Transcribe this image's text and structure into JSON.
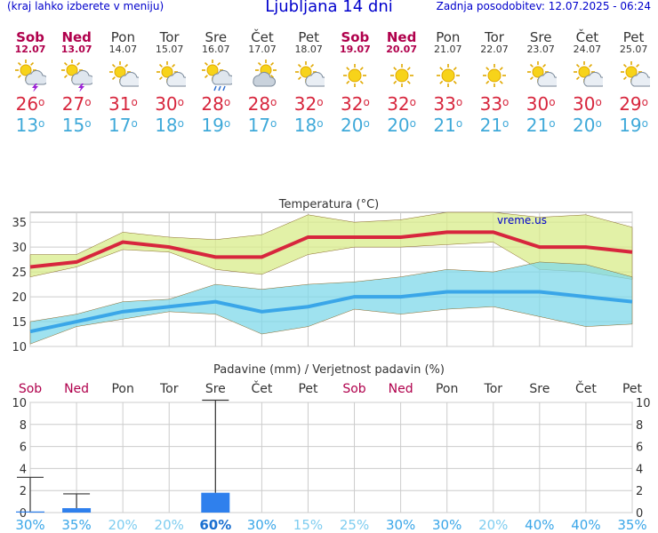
{
  "header": {
    "left_note": "(kraj lahko izberete v meniju)",
    "title": "Ljubljana 14 dni",
    "updated": "Zadnja posodobitev: 12.07.2025 - 06:24"
  },
  "colors": {
    "weekend": "#b0004c",
    "max_temp": "#d7263d",
    "min_temp": "#3fa9d9",
    "rain_bar": "#2f80ed"
  },
  "days": [
    {
      "name": "Sob",
      "date": "12.07",
      "weekend": true,
      "icon": "sun-cloud-lightning-icon",
      "tmax": "26",
      "tmin": "13",
      "precip_prob": "30%"
    },
    {
      "name": "Ned",
      "date": "13.07",
      "weekend": true,
      "icon": "sun-cloud-lightning-icon",
      "tmax": "27",
      "tmin": "15",
      "precip_prob": "35%"
    },
    {
      "name": "Pon",
      "date": "14.07",
      "weekend": false,
      "icon": "sun-cloud-icon",
      "tmax": "31",
      "tmin": "17",
      "precip_prob": "20%"
    },
    {
      "name": "Tor",
      "date": "15.07",
      "weekend": false,
      "icon": "sun-cloud-icon",
      "tmax": "30",
      "tmin": "18",
      "precip_prob": "20%"
    },
    {
      "name": "Sre",
      "date": "16.07",
      "weekend": false,
      "icon": "sun-cloud-rain-icon",
      "tmax": "28",
      "tmin": "19",
      "precip_prob": "60%"
    },
    {
      "name": "Čet",
      "date": "17.07",
      "weekend": false,
      "icon": "cloud-sun-icon",
      "tmax": "28",
      "tmin": "17",
      "precip_prob": "30%"
    },
    {
      "name": "Pet",
      "date": "18.07",
      "weekend": false,
      "icon": "sun-cloud-icon",
      "tmax": "32",
      "tmin": "18",
      "precip_prob": "15%"
    },
    {
      "name": "Sob",
      "date": "19.07",
      "weekend": true,
      "icon": "sun-icon",
      "tmax": "32",
      "tmin": "20",
      "precip_prob": "25%"
    },
    {
      "name": "Ned",
      "date": "20.07",
      "weekend": true,
      "icon": "sun-icon",
      "tmax": "32",
      "tmin": "20",
      "precip_prob": "30%"
    },
    {
      "name": "Pon",
      "date": "21.07",
      "weekend": false,
      "icon": "sun-icon",
      "tmax": "33",
      "tmin": "21",
      "precip_prob": "30%"
    },
    {
      "name": "Tor",
      "date": "22.07",
      "weekend": false,
      "icon": "sun-icon",
      "tmax": "33",
      "tmin": "21",
      "precip_prob": "20%"
    },
    {
      "name": "Sre",
      "date": "23.07",
      "weekend": false,
      "icon": "sun-cloud-icon",
      "tmax": "30",
      "tmin": "21",
      "precip_prob": "40%"
    },
    {
      "name": "Čet",
      "date": "24.07",
      "weekend": false,
      "icon": "sun-cloud-icon",
      "tmax": "30",
      "tmin": "20",
      "precip_prob": "40%"
    },
    {
      "name": "Pet",
      "date": "25.07",
      "weekend": false,
      "icon": "sun-cloud-icon",
      "tmax": "29",
      "tmin": "19",
      "precip_prob": "35%"
    }
  ],
  "chart_data": [
    {
      "type": "line",
      "title": "Temperatura (°C)",
      "watermark": "vreme.us",
      "ylim": [
        10,
        37
      ],
      "yticks": [
        10,
        15,
        20,
        25,
        30,
        35
      ],
      "grid": true,
      "series": [
        {
          "values": [
            26,
            27,
            31,
            30,
            28,
            28,
            32,
            32,
            32,
            33,
            33,
            30,
            30,
            29
          ],
          "band_high": [
            28.5,
            28.5,
            33,
            32,
            31.5,
            32.5,
            36.5,
            35,
            35.5,
            37,
            37,
            36,
            36.5,
            34
          ],
          "band_low": [
            24,
            26,
            29.5,
            29,
            25.5,
            24.5,
            28.5,
            30,
            30,
            30.5,
            31,
            25.5,
            25,
            23.5
          ]
        },
        {
          "values": [
            13,
            15,
            17,
            18,
            19,
            17,
            18,
            20,
            20,
            21,
            21,
            21,
            20,
            19
          ],
          "band_high": [
            15,
            16.5,
            19,
            19.5,
            22.5,
            21.5,
            22.5,
            23,
            24,
            25.5,
            25,
            27,
            26.5,
            24
          ],
          "band_low": [
            10.5,
            14,
            15.5,
            17,
            16.5,
            12.5,
            14,
            17.5,
            16.5,
            17.5,
            18,
            16,
            14,
            14.5
          ]
        }
      ]
    },
    {
      "type": "bar",
      "title": "Padavine (mm) / Verjetnost padavin (%)",
      "ylim": [
        0,
        10
      ],
      "yticks": [
        0,
        2,
        4,
        6,
        8,
        10
      ],
      "values": [
        0.1,
        0.4,
        0,
        0,
        1.8,
        0,
        0,
        0,
        0,
        0,
        0,
        0,
        0,
        0
      ],
      "max_values": [
        3.2,
        1.7,
        0,
        0,
        10.2,
        0,
        0,
        0,
        0,
        0,
        0,
        0,
        0,
        0
      ],
      "probability": [
        "30%",
        "35%",
        "20%",
        "20%",
        "60%",
        "30%",
        "15%",
        "25%",
        "30%",
        "30%",
        "20%",
        "40%",
        "40%",
        "35%"
      ]
    }
  ]
}
